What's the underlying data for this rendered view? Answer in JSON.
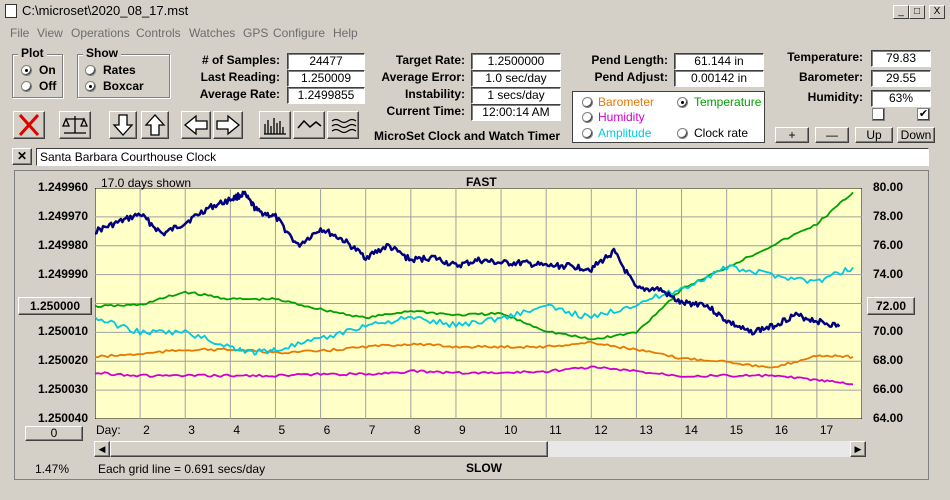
{
  "window": {
    "title": "C:\\microset\\2020_08_17.mst",
    "minimize": "_",
    "maximize": "□",
    "close": "X"
  },
  "menu": [
    "File",
    "View",
    "Operations",
    "Controls",
    "Watches",
    "GPS",
    "Configure",
    "Help"
  ],
  "plot_group": {
    "title": "Plot",
    "options": [
      "On",
      "Off"
    ],
    "selected": "On"
  },
  "show_group": {
    "title": "Show",
    "options": [
      "Rates",
      "Boxcar"
    ],
    "selected": "Boxcar"
  },
  "stats": {
    "samples_label": "# of Samples:",
    "samples": "24477",
    "last_reading_label": "Last Reading:",
    "last_reading": "1.250009",
    "average_rate_label": "Average Rate:",
    "average_rate": "1.2499855",
    "target_rate_label": "Target Rate:",
    "target_rate": "1.2500000",
    "average_error_label": "Average Error:",
    "average_error": "1.0 sec/day",
    "instability_label": "Instability:",
    "instability": "1 secs/day",
    "current_time_label": "Current Time:",
    "current_time": "12:00:14 AM",
    "pend_length_label": "Pend Length:",
    "pend_length": "61.144 in",
    "pend_adjust_label": "Pend Adjust:",
    "pend_adjust": "0.00142 in",
    "temperature_label": "Temperature:",
    "temperature": "79.83",
    "barometer_label": "Barometer:",
    "barometer": "29.55",
    "humidity_label": "Humidity:",
    "humidity": "63%"
  },
  "app_name": "MicroSet Clock and Watch Timer",
  "sensor_options": [
    {
      "label": "Barometer",
      "color": "#e87800",
      "selected": false
    },
    {
      "label": "Temperature",
      "color": "#00a000",
      "selected": true
    },
    {
      "label": "Humidity",
      "color": "#d000d0",
      "selected": false
    },
    {
      "label": "Clock rate",
      "color": "#000000",
      "selected": false
    },
    {
      "label": "Amplitude",
      "color": "#00c8e0",
      "selected": false
    }
  ],
  "scale_buttons": {
    "plus": "+",
    "minus": "—",
    "up": "Up",
    "down": "Down"
  },
  "checkboxes": {
    "left": "",
    "right": "✔"
  },
  "clock_name": "Santa Barbara Courthouse Clock",
  "chart": {
    "days_shown": "17.0 days shown",
    "fast_label": "FAST",
    "slow_label": "SLOW",
    "grid_note": "Each grid line = 0.691 secs/day",
    "percent": "1.47%",
    "left_center_button": "1.250000",
    "right_center_button": "72.00",
    "bottom_left_button": "0",
    "day_label": "Day:"
  },
  "chart_data": {
    "type": "line",
    "x_label": "Day:",
    "x_ticks": [
      "2",
      "3",
      "4",
      "5",
      "6",
      "7",
      "8",
      "9",
      "10",
      "11",
      "12",
      "13",
      "14",
      "15",
      "16",
      "17"
    ],
    "xlim": [
      1.0,
      18.0
    ],
    "y_left_ticks": [
      "1.249960",
      "1.249970",
      "1.249980",
      "1.249990",
      "1.250000",
      "1.250010",
      "1.250020",
      "1.250030",
      "1.250040"
    ],
    "y_left_range": [
      1.24996,
      1.25004
    ],
    "y_right_ticks": [
      "80.00",
      "78.00",
      "76.00",
      "74.00",
      "72.00",
      "70.00",
      "68.00",
      "66.00",
      "64.00"
    ],
    "y_right_range": [
      64.0,
      80.0
    ],
    "series": [
      {
        "color": "#000080",
        "axis": "left",
        "x": [
          1.0,
          1.5,
          2.0,
          2.5,
          3.0,
          3.5,
          4.0,
          4.3,
          4.6,
          5.0,
          5.5,
          6.0,
          6.5,
          7.0,
          7.5,
          8.0,
          8.5,
          9.0,
          9.5,
          10.0,
          10.5,
          11.0,
          11.5,
          12.0,
          12.5,
          13.0,
          13.5,
          14.0,
          14.5,
          15.0,
          15.5,
          16.0,
          16.5,
          17.0,
          17.5
        ],
        "y": [
          1.249975,
          1.249972,
          1.249969,
          1.249976,
          1.249972,
          1.249967,
          1.249964,
          1.249962,
          1.249968,
          1.24997,
          1.24998,
          1.249974,
          1.249978,
          1.249984,
          1.24998,
          1.249985,
          1.249984,
          1.249987,
          1.249985,
          1.249986,
          1.249986,
          1.249987,
          1.249987,
          1.249988,
          1.249982,
          1.249995,
          1.249995,
          1.25,
          1.25,
          1.250006,
          1.25001,
          1.250008,
          1.250004,
          1.250006,
          1.250008
        ]
      },
      {
        "color": "#00a000",
        "axis": "right",
        "x": [
          1.0,
          2.0,
          3.0,
          4.0,
          5.0,
          6.0,
          7.0,
          8.0,
          9.0,
          10.0,
          11.0,
          12.0,
          13.0,
          14.0,
          15.0,
          16.0,
          17.0,
          17.8
        ],
        "y": [
          71.8,
          71.9,
          72.8,
          72.3,
          72.3,
          71.6,
          71.0,
          71.5,
          71.2,
          71.3,
          70.1,
          69.5,
          70.0,
          73.0,
          74.5,
          76.0,
          77.5,
          79.7
        ]
      },
      {
        "color": "#00c8e0",
        "axis": "right",
        "x": [
          1.0,
          2.0,
          3.0,
          4.0,
          4.5,
          5.0,
          6.0,
          7.0,
          8.0,
          9.0,
          10.0,
          11.0,
          12.0,
          13.0,
          14.0,
          15.0,
          16.0,
          17.0,
          17.8
        ],
        "y": [
          71.0,
          70.0,
          70.0,
          69.0,
          68.6,
          68.8,
          69.5,
          70.5,
          71.0,
          70.5,
          71.0,
          71.8,
          71.0,
          72.0,
          73.0,
          74.5,
          74.0,
          73.5,
          74.5
        ]
      },
      {
        "color": "#e87800",
        "axis": "right",
        "x": [
          1.0,
          2.0,
          3.0,
          4.0,
          5.0,
          6.0,
          7.0,
          8.0,
          9.0,
          10.0,
          11.0,
          12.0,
          13.0,
          14.0,
          15.0,
          16.0,
          17.0,
          17.8
        ],
        "y": [
          68.3,
          68.5,
          68.8,
          68.8,
          68.6,
          68.7,
          69.0,
          69.2,
          69.0,
          69.0,
          69.0,
          69.3,
          68.8,
          68.2,
          68.0,
          67.5,
          68.4,
          68.3
        ]
      },
      {
        "color": "#d000d0",
        "axis": "right",
        "x": [
          1.0,
          2.0,
          3.0,
          4.0,
          5.0,
          6.0,
          7.0,
          8.0,
          9.0,
          10.0,
          11.0,
          12.0,
          13.0,
          14.0,
          15.0,
          16.0,
          17.0,
          17.8
        ],
        "y": [
          67.2,
          67.0,
          67.0,
          67.0,
          67.0,
          67.1,
          67.1,
          67.3,
          67.2,
          67.2,
          67.3,
          67.6,
          67.3,
          67.0,
          67.0,
          67.0,
          66.7,
          66.4
        ]
      }
    ]
  }
}
